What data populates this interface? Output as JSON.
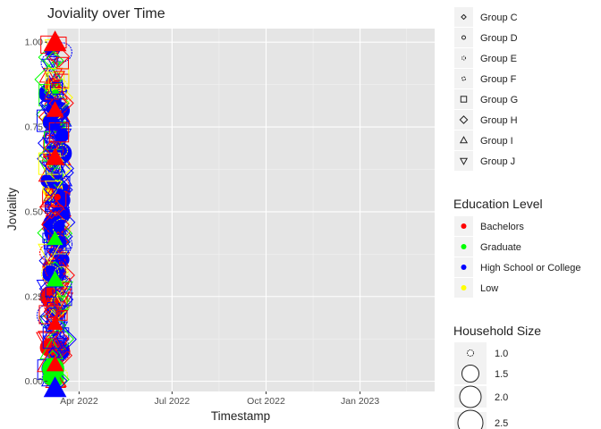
{
  "chart_data": {
    "type": "scatter",
    "title": "Joviality over Time",
    "xlabel": "Timestamp",
    "ylabel": "Joviality",
    "x_range": [
      "2022-03-01",
      "2023-03-15"
    ],
    "ylim": [
      -0.03,
      1.04
    ],
    "x_ticks": [
      {
        "date": "2022-04-01",
        "label": "Apr 2022"
      },
      {
        "date": "2022-07-01",
        "label": "Jul 2022"
      },
      {
        "date": "2022-10-01",
        "label": "Oct 2022"
      },
      {
        "date": "2023-01-01",
        "label": "Jan 2023"
      }
    ],
    "y_ticks": [
      {
        "value": 0.0,
        "label": "0.00"
      },
      {
        "value": 0.25,
        "label": "0.25"
      },
      {
        "value": 0.5,
        "label": "0.50"
      },
      {
        "value": 0.75,
        "label": "0.75"
      },
      {
        "value": 1.0,
        "label": "1.00"
      }
    ],
    "grid": true,
    "background": "#e5e5e5",
    "data_x_range": [
      "2022-03-01",
      "2022-03-16"
    ],
    "legends": {
      "shape": {
        "items": [
          {
            "label": "Group C",
            "shape": "diamond-small"
          },
          {
            "label": "Group D",
            "shape": "circle-small"
          },
          {
            "label": "Group E",
            "shape": "star-small"
          },
          {
            "label": "Group F",
            "shape": "circle-open-small"
          },
          {
            "label": "Group G",
            "shape": "square"
          },
          {
            "label": "Group H",
            "shape": "diamond"
          },
          {
            "label": "Group I",
            "shape": "triangle-up"
          },
          {
            "label": "Group J",
            "shape": "triangle-down"
          }
        ]
      },
      "color": {
        "title": "Education Level",
        "items": [
          {
            "label": "Bachelors",
            "color": "#ff0000"
          },
          {
            "label": "Graduate",
            "color": "#00ff00"
          },
          {
            "label": "High School or College",
            "color": "#0000ff"
          },
          {
            "label": "Low",
            "color": "#ffff00"
          }
        ]
      },
      "size": {
        "title": "Household Size",
        "items": [
          {
            "label": "1.0",
            "value": 1.0
          },
          {
            "label": "1.5",
            "value": 1.5
          },
          {
            "label": "2.0",
            "value": 2.0
          },
          {
            "label": "2.5",
            "value": 2.5
          }
        ]
      }
    }
  }
}
